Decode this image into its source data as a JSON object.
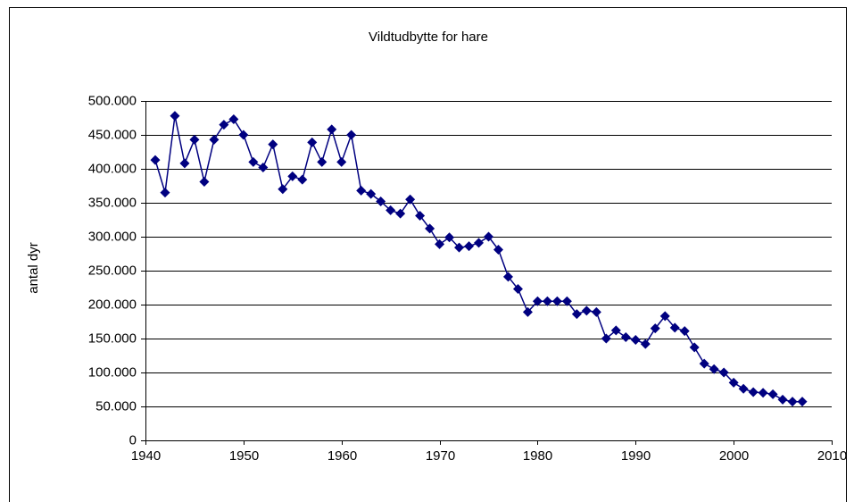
{
  "chart_data": {
    "type": "line",
    "title": "Vildtudbytte for hare",
    "y_label": "antal dyr",
    "color": "#000080",
    "x": [
      1941,
      1942,
      1943,
      1944,
      1945,
      1946,
      1947,
      1948,
      1949,
      1950,
      1951,
      1952,
      1953,
      1954,
      1955,
      1956,
      1957,
      1958,
      1959,
      1960,
      1961,
      1962,
      1963,
      1964,
      1965,
      1966,
      1967,
      1968,
      1969,
      1970,
      1971,
      1972,
      1973,
      1974,
      1975,
      1976,
      1977,
      1978,
      1979,
      1980,
      1981,
      1982,
      1983,
      1984,
      1985,
      1986,
      1987,
      1988,
      1989,
      1990,
      1991,
      1992,
      1993,
      1994,
      1995,
      1996,
      1997,
      1998,
      1999,
      2000,
      2001,
      2002,
      2003,
      2004,
      2005,
      2006,
      2007
    ],
    "values": [
      413000,
      365000,
      478000,
      408000,
      443000,
      381000,
      443000,
      465000,
      473000,
      450000,
      410000,
      402000,
      436000,
      370000,
      389000,
      384000,
      439000,
      410000,
      458000,
      410000,
      450000,
      368000,
      363000,
      352000,
      339000,
      334000,
      355000,
      331000,
      312000,
      289000,
      299000,
      284000,
      286000,
      291000,
      300000,
      281000,
      241000,
      223000,
      189000,
      205000,
      205000,
      205000,
      205000,
      186000,
      191000,
      189000,
      150000,
      162000,
      152000,
      148000,
      142000,
      165000,
      183000,
      166000,
      161000,
      137000,
      113000,
      105000,
      100000,
      85000,
      76000,
      71000,
      70000,
      68000,
      60000,
      57000,
      57000
    ],
    "xlim": [
      1940,
      2010
    ],
    "xticks": [
      1940,
      1950,
      1960,
      1970,
      1980,
      1990,
      2000,
      2010
    ],
    "ylim": [
      0,
      500000
    ],
    "yticks": [
      0,
      {
        "value": 50000,
        "label": "50.000"
      },
      {
        "value": 100000,
        "label": "100.000"
      },
      {
        "value": 150000,
        "label": "150.000"
      },
      {
        "value": 200000,
        "label": "200.000"
      },
      {
        "value": 250000,
        "label": "250.000"
      },
      {
        "value": 300000,
        "label": "300.000"
      },
      {
        "value": 350000,
        "label": "350.000"
      },
      {
        "value": 400000,
        "label": "400.000"
      },
      {
        "value": 450000,
        "label": "450.000"
      },
      {
        "value": 500000,
        "label": "500.000"
      }
    ],
    "grid": true
  }
}
